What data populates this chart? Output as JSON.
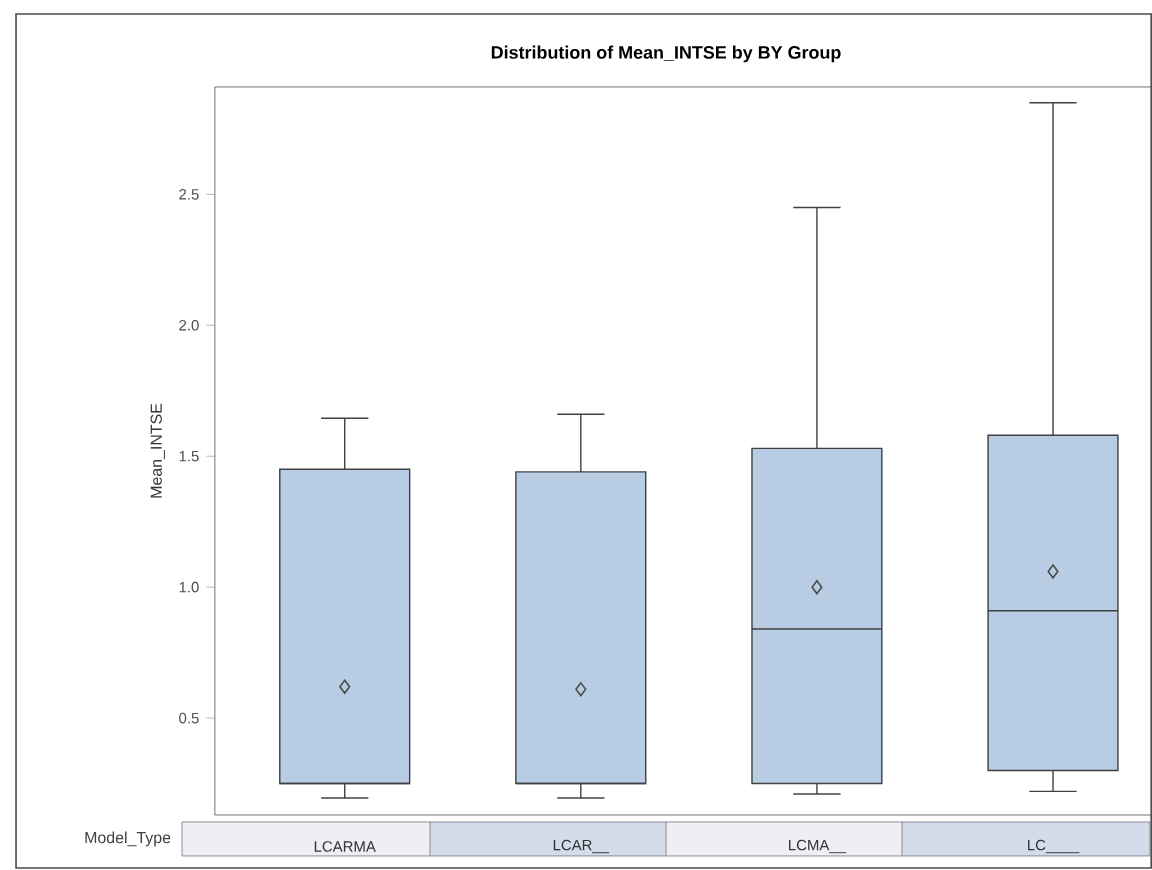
{
  "chart_data": {
    "type": "box",
    "title": "Distribution of Mean_INTSE by BY Group",
    "xlabel": "Model_Type",
    "ylabel": "Mean_INTSE",
    "categories": [
      "LCARMA",
      "LCAR__",
      "LCMA__",
      "LC____"
    ],
    "series": [
      {
        "color": "#b8cce4",
        "boxes": [
          {
            "low": 0.195,
            "q1": 0.25,
            "median": 0.25,
            "q3": 1.45,
            "high": 1.645,
            "mean": 0.62
          },
          {
            "low": 0.195,
            "q1": 0.25,
            "median": 0.25,
            "q3": 1.44,
            "high": 1.66,
            "mean": 0.61
          },
          {
            "low": 0.21,
            "q1": 0.25,
            "median": 0.84,
            "q3": 1.53,
            "high": 2.45,
            "mean": 1.0
          },
          {
            "low": 0.22,
            "q1": 0.3,
            "median": 0.91,
            "q3": 1.58,
            "high": 2.85,
            "mean": 1.06
          }
        ]
      }
    ],
    "ylim": [
      0.13,
      2.91
    ],
    "yticks": [
      0.5,
      {
        "value": 1,
        "label": "1.0"
      },
      1.5,
      {
        "value": 2,
        "label": "2.0"
      },
      2.5
    ],
    "marker": "diamond",
    "grid": false
  }
}
